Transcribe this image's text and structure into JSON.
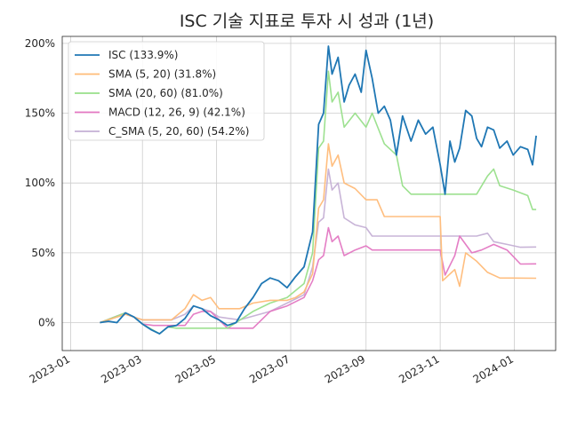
{
  "chart_data": {
    "type": "line",
    "title": "ISC 기술 지표로 투자 시 성과 (1년)",
    "xlabel": "",
    "ylabel": "",
    "x_ticks": [
      "2023-01",
      "2023-03",
      "2023-05",
      "2023-07",
      "2023-09",
      "2023-11",
      "2024-01"
    ],
    "y_ticks": [
      "0%",
      "50%",
      "100%",
      "150%",
      "200%"
    ],
    "xlim": [
      "2022-12-25",
      "2024-02-04"
    ],
    "ylim": [
      -20,
      205
    ],
    "grid": true,
    "legend_position": "top-left",
    "series": [
      {
        "name": "ISC (133.9%)",
        "color": "#1f77b4",
        "points": [
          [
            "2023-01-25",
            0
          ],
          [
            "2023-02-01",
            1
          ],
          [
            "2023-02-08",
            0
          ],
          [
            "2023-02-15",
            7
          ],
          [
            "2023-02-22",
            4
          ],
          [
            "2023-03-01",
            -1
          ],
          [
            "2023-03-08",
            -5
          ],
          [
            "2023-03-15",
            -8
          ],
          [
            "2023-03-22",
            -3
          ],
          [
            "2023-03-29",
            -2
          ],
          [
            "2023-04-05",
            3
          ],
          [
            "2023-04-12",
            12
          ],
          [
            "2023-04-19",
            10
          ],
          [
            "2023-04-26",
            5
          ],
          [
            "2023-05-03",
            2
          ],
          [
            "2023-05-10",
            -2
          ],
          [
            "2023-05-17",
            0
          ],
          [
            "2023-05-24",
            10
          ],
          [
            "2023-05-31",
            18
          ],
          [
            "2023-06-07",
            28
          ],
          [
            "2023-06-14",
            32
          ],
          [
            "2023-06-21",
            30
          ],
          [
            "2023-06-28",
            25
          ],
          [
            "2023-07-05",
            33
          ],
          [
            "2023-07-12",
            40
          ],
          [
            "2023-07-19",
            65
          ],
          [
            "2023-07-24",
            142
          ],
          [
            "2023-07-28",
            150
          ],
          [
            "2023-08-01",
            198
          ],
          [
            "2023-08-04",
            178
          ],
          [
            "2023-08-09",
            190
          ],
          [
            "2023-08-14",
            158
          ],
          [
            "2023-08-18",
            170
          ],
          [
            "2023-08-23",
            178
          ],
          [
            "2023-08-28",
            165
          ],
          [
            "2023-09-01",
            195
          ],
          [
            "2023-09-06",
            175
          ],
          [
            "2023-09-11",
            150
          ],
          [
            "2023-09-16",
            155
          ],
          [
            "2023-09-21",
            145
          ],
          [
            "2023-09-26",
            120
          ],
          [
            "2023-10-01",
            148
          ],
          [
            "2023-10-08",
            130
          ],
          [
            "2023-10-14",
            145
          ],
          [
            "2023-10-20",
            135
          ],
          [
            "2023-10-26",
            140
          ],
          [
            "2023-11-01",
            113
          ],
          [
            "2023-11-05",
            92
          ],
          [
            "2023-11-09",
            130
          ],
          [
            "2023-11-13",
            115
          ],
          [
            "2023-11-17",
            125
          ],
          [
            "2023-11-22",
            152
          ],
          [
            "2023-11-27",
            148
          ],
          [
            "2023-12-01",
            132
          ],
          [
            "2023-12-05",
            126
          ],
          [
            "2023-12-10",
            140
          ],
          [
            "2023-12-15",
            138
          ],
          [
            "2023-12-20",
            125
          ],
          [
            "2023-12-26",
            130
          ],
          [
            "2023-12-31",
            120
          ],
          [
            "2024-01-06",
            126
          ],
          [
            "2024-01-12",
            124
          ],
          [
            "2024-01-16",
            113
          ],
          [
            "2024-01-19",
            133.9
          ]
        ]
      },
      {
        "name": "SMA (5, 20) (31.8%)",
        "color": "#ffbb78",
        "points": [
          [
            "2023-01-25",
            0
          ],
          [
            "2023-02-15",
            6
          ],
          [
            "2023-02-22",
            4
          ],
          [
            "2023-03-01",
            2
          ],
          [
            "2023-03-25",
            2
          ],
          [
            "2023-04-05",
            10
          ],
          [
            "2023-04-12",
            20
          ],
          [
            "2023-04-19",
            16
          ],
          [
            "2023-04-26",
            18
          ],
          [
            "2023-05-03",
            10
          ],
          [
            "2023-05-20",
            10
          ],
          [
            "2023-05-31",
            14
          ],
          [
            "2023-06-14",
            16
          ],
          [
            "2023-06-28",
            16
          ],
          [
            "2023-07-05",
            18
          ],
          [
            "2023-07-12",
            22
          ],
          [
            "2023-07-19",
            35
          ],
          [
            "2023-07-24",
            82
          ],
          [
            "2023-07-28",
            88
          ],
          [
            "2023-08-01",
            128
          ],
          [
            "2023-08-04",
            112
          ],
          [
            "2023-08-09",
            120
          ],
          [
            "2023-08-14",
            100
          ],
          [
            "2023-08-23",
            96
          ],
          [
            "2023-09-01",
            88
          ],
          [
            "2023-09-10",
            88
          ],
          [
            "2023-09-16",
            76
          ],
          [
            "2023-10-20",
            76
          ],
          [
            "2023-11-01",
            76
          ],
          [
            "2023-11-03",
            30
          ],
          [
            "2023-11-13",
            38
          ],
          [
            "2023-11-17",
            26
          ],
          [
            "2023-11-22",
            50
          ],
          [
            "2023-12-01",
            44
          ],
          [
            "2023-12-10",
            36
          ],
          [
            "2023-12-20",
            32
          ],
          [
            "2024-01-19",
            31.8
          ]
        ]
      },
      {
        "name": "SMA (20, 60) (81.0%)",
        "color": "#98df8a",
        "points": [
          [
            "2023-01-25",
            0
          ],
          [
            "2023-02-15",
            7
          ],
          [
            "2023-02-22",
            4
          ],
          [
            "2023-03-01",
            -1
          ],
          [
            "2023-03-15",
            -8
          ],
          [
            "2023-03-22",
            -3
          ],
          [
            "2023-03-29",
            -4
          ],
          [
            "2023-05-10",
            -4
          ],
          [
            "2023-05-31",
            8
          ],
          [
            "2023-06-14",
            14
          ],
          [
            "2023-06-28",
            18
          ],
          [
            "2023-07-12",
            28
          ],
          [
            "2023-07-19",
            50
          ],
          [
            "2023-07-24",
            125
          ],
          [
            "2023-07-28",
            130
          ],
          [
            "2023-08-01",
            180
          ],
          [
            "2023-08-04",
            158
          ],
          [
            "2023-08-09",
            165
          ],
          [
            "2023-08-14",
            140
          ],
          [
            "2023-08-23",
            150
          ],
          [
            "2023-09-01",
            140
          ],
          [
            "2023-09-06",
            150
          ],
          [
            "2023-09-16",
            128
          ],
          [
            "2023-09-26",
            120
          ],
          [
            "2023-10-01",
            98
          ],
          [
            "2023-10-08",
            92
          ],
          [
            "2023-10-20",
            92
          ],
          [
            "2023-12-01",
            92
          ],
          [
            "2023-12-10",
            105
          ],
          [
            "2023-12-15",
            110
          ],
          [
            "2023-12-20",
            98
          ],
          [
            "2023-12-31",
            95
          ],
          [
            "2024-01-06",
            93
          ],
          [
            "2024-01-12",
            91
          ],
          [
            "2024-01-16",
            81
          ],
          [
            "2024-01-19",
            81.0
          ]
        ]
      },
      {
        "name": "MACD (12, 26, 9) (42.1%)",
        "color": "#e377c2",
        "points": [
          [
            "2023-01-25",
            0
          ],
          [
            "2023-02-15",
            7
          ],
          [
            "2023-02-22",
            4
          ],
          [
            "2023-03-01",
            -1
          ],
          [
            "2023-03-10",
            -2
          ],
          [
            "2023-04-05",
            -2
          ],
          [
            "2023-04-12",
            6
          ],
          [
            "2023-04-19",
            8
          ],
          [
            "2023-04-26",
            8
          ],
          [
            "2023-05-10",
            -4
          ],
          [
            "2023-05-31",
            -4
          ],
          [
            "2023-06-14",
            8
          ],
          [
            "2023-06-28",
            12
          ],
          [
            "2023-07-12",
            18
          ],
          [
            "2023-07-19",
            30
          ],
          [
            "2023-07-24",
            45
          ],
          [
            "2023-07-28",
            48
          ],
          [
            "2023-08-01",
            68
          ],
          [
            "2023-08-04",
            58
          ],
          [
            "2023-08-09",
            62
          ],
          [
            "2023-08-14",
            48
          ],
          [
            "2023-08-23",
            52
          ],
          [
            "2023-09-01",
            55
          ],
          [
            "2023-09-06",
            52
          ],
          [
            "2023-10-20",
            52
          ],
          [
            "2023-11-01",
            52
          ],
          [
            "2023-11-05",
            34
          ],
          [
            "2023-11-13",
            48
          ],
          [
            "2023-11-17",
            62
          ],
          [
            "2023-11-27",
            50
          ],
          [
            "2023-12-05",
            52
          ],
          [
            "2023-12-15",
            56
          ],
          [
            "2023-12-26",
            52
          ],
          [
            "2024-01-06",
            42
          ],
          [
            "2024-01-19",
            42.1
          ]
        ]
      },
      {
        "name": "C_SMA (5, 20, 60) (54.2%)",
        "color": "#c5b0d5",
        "points": [
          [
            "2023-01-25",
            0
          ],
          [
            "2023-02-15",
            6
          ],
          [
            "2023-02-22",
            4
          ],
          [
            "2023-03-01",
            2
          ],
          [
            "2023-03-25",
            2
          ],
          [
            "2023-04-05",
            6
          ],
          [
            "2023-04-12",
            12
          ],
          [
            "2023-04-19",
            10
          ],
          [
            "2023-04-26",
            8
          ],
          [
            "2023-05-03",
            4
          ],
          [
            "2023-05-20",
            2
          ],
          [
            "2023-06-14",
            8
          ],
          [
            "2023-06-28",
            14
          ],
          [
            "2023-07-12",
            20
          ],
          [
            "2023-07-19",
            40
          ],
          [
            "2023-07-24",
            72
          ],
          [
            "2023-07-28",
            75
          ],
          [
            "2023-08-01",
            110
          ],
          [
            "2023-08-04",
            95
          ],
          [
            "2023-08-09",
            100
          ],
          [
            "2023-08-14",
            75
          ],
          [
            "2023-08-23",
            70
          ],
          [
            "2023-09-01",
            68
          ],
          [
            "2023-09-06",
            62
          ],
          [
            "2023-10-20",
            62
          ],
          [
            "2023-12-01",
            62
          ],
          [
            "2023-12-10",
            64
          ],
          [
            "2023-12-15",
            58
          ],
          [
            "2023-12-26",
            56
          ],
          [
            "2024-01-06",
            54
          ],
          [
            "2024-01-19",
            54.2
          ]
        ]
      }
    ]
  }
}
